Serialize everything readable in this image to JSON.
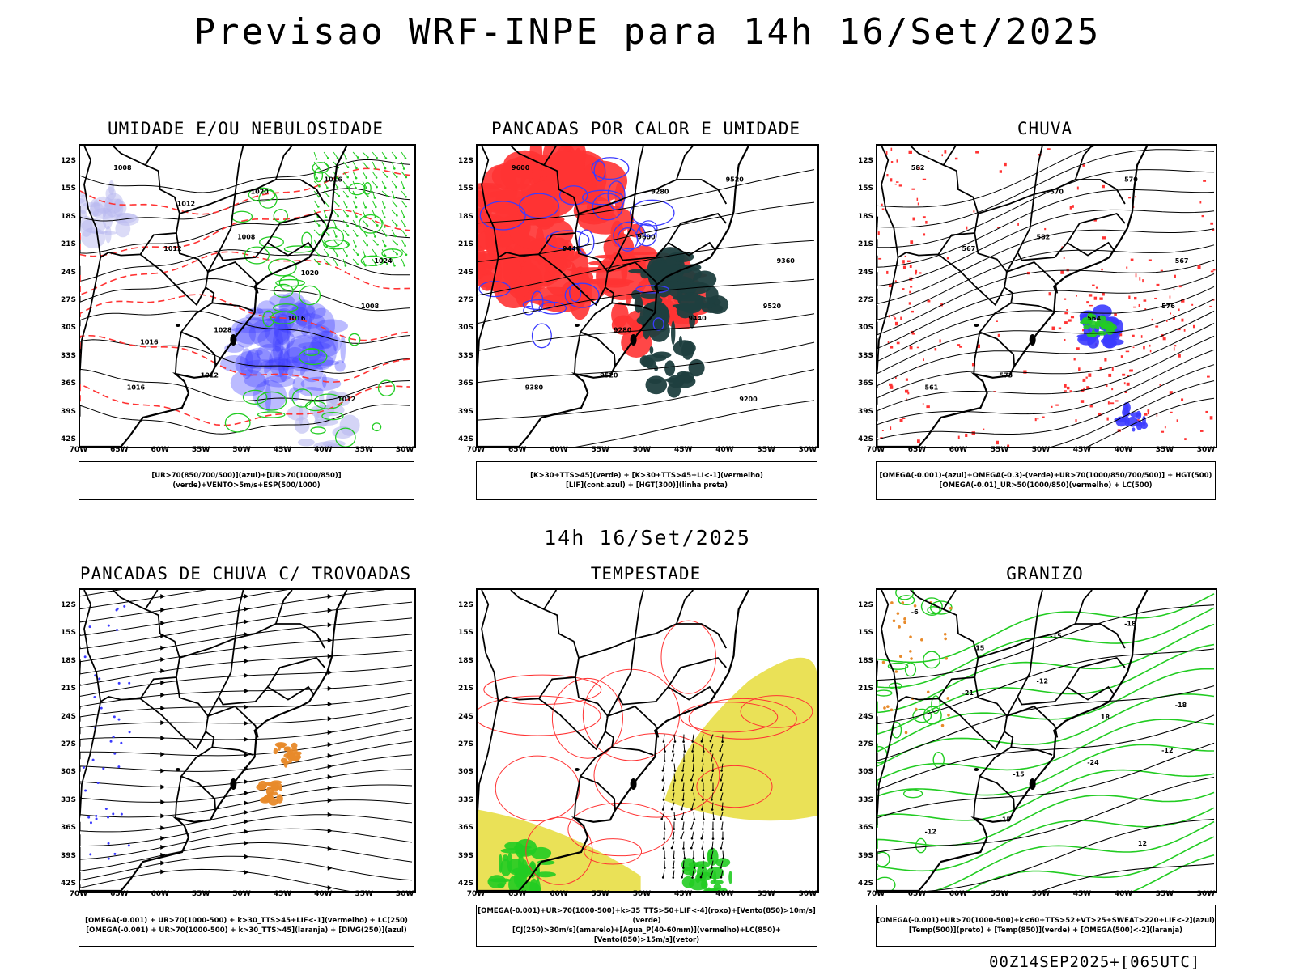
{
  "main_title": "Previsao WRF-INPE  para 14h 16/Set/2025",
  "mid_title": "14h 16/Set/2025",
  "footer": "00Z14SEP2025+[065UTC]",
  "lat_labels": [
    "12S",
    "15S",
    "18S",
    "21S",
    "24S",
    "27S",
    "30S",
    "33S",
    "36S",
    "39S",
    "42S"
  ],
  "lon_labels": [
    "70W",
    "65W",
    "60W",
    "55W",
    "50W",
    "45W",
    "40W",
    "35W",
    "30W"
  ],
  "colors": {
    "blue": "#3b3bff",
    "green": "#22cc22",
    "red": "#ff3333",
    "darkteal": "#1f3f3f",
    "orange": "#e88a2a",
    "yellow": "#e6dc3a",
    "lavender": "#b8b8f0"
  },
  "panels": [
    {
      "id": "umidade",
      "title": "UMIDADE E/OU NEBULOSIDADE",
      "legend": [
        "[UR>70(850/700/500)](azul)+[UR>70(1000/850)](verde)+VENTO>5m/s+ESP(500/1000)"
      ],
      "contour_labels": [
        "1008",
        "1008",
        "1008",
        "1012",
        "1016",
        "1012",
        "1016",
        "1016",
        "1020",
        "1024",
        "1028",
        "1012",
        "1012",
        "1020",
        "1016"
      ]
    },
    {
      "id": "pancadas-calor",
      "title": "PANCADAS POR CALOR E UMIDADE",
      "legend": [
        "[K>30+TTS>45](verde) + [K>30+TTS>45+LI<-1](vermelho)",
        "[LIF](cont.azul) + [HGT(300)](linha preta)"
      ],
      "contour_labels": [
        "9600",
        "9600",
        "9520",
        "9520",
        "9520",
        "9440",
        "9440",
        "9380",
        "9280",
        "9360",
        "9280",
        "9200"
      ]
    },
    {
      "id": "chuva",
      "title": "CHUVA",
      "legend": [
        "[OMEGA(-0.001)-(azul)+OMEGA(-0.3)-(verde)+UR>70(1000/850/700/500)] + HGT(500)",
        "[OMEGA(-0.01)_UR>50(1000/850)(vermelho) + LC(500)"
      ],
      "contour_labels": [
        "582",
        "582",
        "576",
        "573",
        "570",
        "567",
        "564",
        "561",
        "570",
        "567"
      ]
    },
    {
      "id": "trovoadas",
      "title": "PANCADAS DE CHUVA C/ TROVOADAS",
      "legend": [
        "[OMEGA(-0.001) + UR>70(1000-500) + k>30_TTS>45+LIF<-1](vermelho) + LC(250)",
        "[OMEGA(-0.001) + UR>70(1000-500) + k>30_TTS>45](laranja) + [DIVG(250)](azul)"
      ],
      "contour_labels": []
    },
    {
      "id": "tempestade",
      "title": "TEMPESTADE",
      "legend": [
        "[OMEGA(-0.001)+UR>70(1000-500)+k>35_TTS>50+LIF<-4](roxo)+[Vento(850)>10m/s](verde)",
        "[CJ(250)>30m/s](amarelo)+[Agua_P(40-60mm)](vermelho)+LC(850)+[Vento(850)>15m/s](vetor)"
      ],
      "contour_labels": []
    },
    {
      "id": "granizo",
      "title": "GRANIZO",
      "legend": [
        "[OMEGA(-0.001)+UR>70(1000-500)+k<60+TTS>52+VT>25+SWEAT>220+LIF<-2](azul)",
        "[Temp(500)](preto) + [Temp(850)](verde) + [OMEGA(500)<-2](laranja)"
      ],
      "contour_labels": [
        "-6",
        "-12",
        "-12",
        "-15",
        "-18",
        "-21",
        "-24",
        "-12",
        "-15",
        "-18",
        "-15",
        "12",
        "15",
        "18"
      ]
    }
  ]
}
